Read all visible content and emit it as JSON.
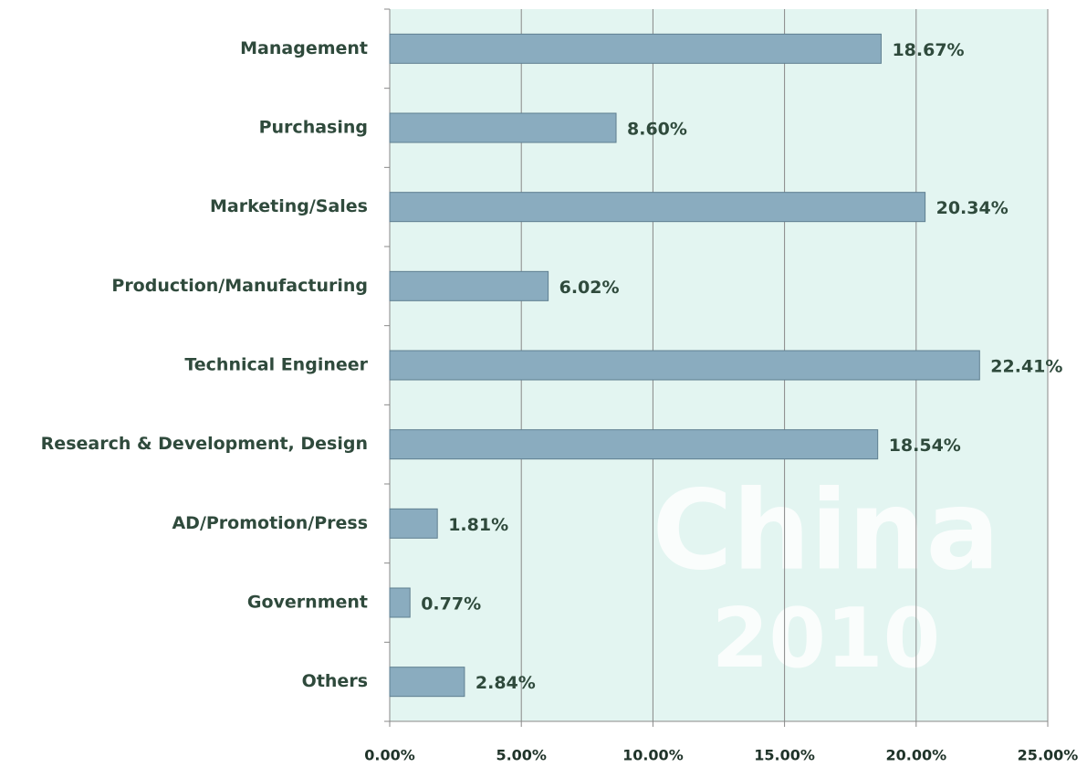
{
  "chart_data": {
    "type": "bar",
    "orientation": "horizontal",
    "categories": [
      "Management",
      "Purchasing",
      "Marketing/Sales",
      "Production/Manufacturing",
      "Technical Engineer",
      "Research & Development, Design",
      "AD/Promotion/Press",
      "Government",
      "Others"
    ],
    "values": [
      18.67,
      8.6,
      20.34,
      6.02,
      22.41,
      18.54,
      1.81,
      0.77,
      2.84
    ],
    "value_labels": [
      "18.67%",
      "8.60%",
      "20.34%",
      "6.02%",
      "22.41%",
      "18.54%",
      "1.81%",
      "0.77%",
      "2.84%"
    ],
    "color": "#8aacbf",
    "xlim": [
      0,
      25
    ],
    "xticks": [
      {
        "value": 0,
        "label": "0.00%"
      },
      {
        "value": 5,
        "label": "5.00%"
      },
      {
        "value": 10,
        "label": "10.00%"
      },
      {
        "value": 15,
        "label": "15.00%"
      },
      {
        "value": 20,
        "label": "20.00%"
      },
      {
        "value": 25,
        "label": "25.00%"
      }
    ],
    "grid": true,
    "watermark": [
      "China",
      "2010"
    ]
  }
}
